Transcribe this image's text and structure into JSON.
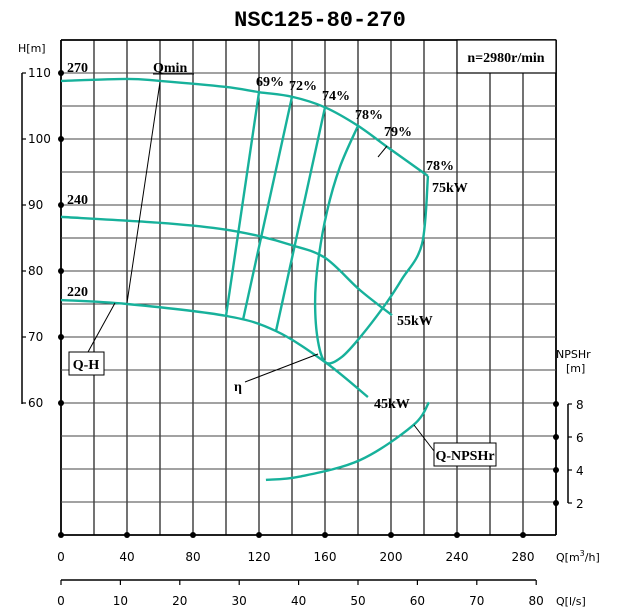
{
  "chart_data": {
    "type": "line",
    "title": "NSC125-80-270",
    "speed_label": "n=2980r/min",
    "xlabel": "Q[m³/h]",
    "xlabel2": "Q[l/s]",
    "ylabel": "H[m]",
    "ylabel_right": "NPSHr [m]",
    "xlim": [
      0,
      300
    ],
    "ylim": [
      48,
      115
    ],
    "grid": true,
    "x_ticks": [
      0,
      40,
      80,
      120,
      160,
      200,
      240,
      280
    ],
    "x2_ticks": [
      0,
      10,
      20,
      30,
      40,
      50,
      60,
      70,
      80
    ],
    "y_ticks": [
      60,
      70,
      80,
      90,
      100,
      110
    ],
    "npsh_ticks": [
      2,
      4,
      6,
      8
    ],
    "series": [
      {
        "name": "Q-H 270",
        "impeller": "270",
        "x": [
          0,
          40,
          60,
          99.4,
          120,
          140,
          160,
          180,
          198.8,
          222.4
        ],
        "y": [
          108.8,
          109.1,
          108.8,
          107.9,
          107.1,
          106.4,
          104.8,
          102,
          98.6,
          94.4
        ]
      },
      {
        "name": "Q-H 240",
        "impeller": "240",
        "x": [
          0,
          60,
          96.4,
          120,
          140,
          160,
          181.2,
          200.6
        ],
        "y": [
          88.2,
          87.3,
          86.4,
          85.3,
          83.9,
          82,
          77.1,
          73.3
        ]
      },
      {
        "name": "Q-H 220",
        "impeller": "220",
        "x": [
          0,
          40,
          100,
          130.3,
          160.6,
          186
        ],
        "y": [
          75.6,
          75,
          73.2,
          70.9,
          66.1,
          60.9
        ]
      },
      {
        "name": "Q-NPSHr",
        "x": [
          124.2,
          144.8,
          181.2,
          213.3,
          223
        ],
        "y": [
          3.4,
          3.6,
          4.6,
          6.7,
          8.1
        ],
        "axis": "right"
      }
    ],
    "efficiency_lines": [
      {
        "label": "69%",
        "x": [
          120,
          100
        ],
        "y": [
          107.1,
          73.2
        ]
      },
      {
        "label": "72%",
        "x": [
          140,
          110.3
        ],
        "y": [
          106.4,
          72.6
        ]
      },
      {
        "label": "74%",
        "x": [
          160,
          130.3
        ],
        "y": [
          104.8,
          70.9
        ]
      }
    ],
    "efficiency_loop": {
      "label": "78%",
      "x": [
        180,
        169.1,
        161.2,
        155.8,
        154,
        155.8,
        160.6,
        170.3,
        182.4,
        197.6,
        206.7,
        218.8,
        222.4
      ],
      "y": [
        102,
        95.8,
        89,
        81.4,
        75.3,
        69.3,
        66.1,
        67,
        70.3,
        75.3,
        78.8,
        84.1,
        94.4
      ]
    },
    "annotations": {
      "qmin": "Qmin",
      "qh": "Q-H",
      "eta": "η",
      "qnpshr": "Q-NPSHr",
      "eff_labels": [
        "69%",
        "72%",
        "74%",
        "78%",
        "79%",
        "78%"
      ],
      "power_labels": [
        "75kW",
        "55kW",
        "45kW"
      ],
      "impeller_labels": [
        "270",
        "240",
        "220"
      ]
    },
    "colors": {
      "curve": "#17b19b",
      "grid": "#000000"
    }
  },
  "labels": {
    "title": "NSC125-80-270",
    "speed": "n=2980r/min",
    "y_axis": "H[m]",
    "npsh_axis_1": "NPSHr",
    "npsh_axis_2": "[m]",
    "x_axis_m3h": "Q[m³/h]",
    "x_axis_ls": "Q[l/s]",
    "qmin": "Qmin",
    "qh": "Q-H",
    "eta": "η",
    "qnpshr": "Q-NPSHr",
    "imp270": "270",
    "imp240": "240",
    "imp220": "220",
    "e69": "69%",
    "e72": "72%",
    "e74": "74%",
    "e78a": "78%",
    "e79": "79%",
    "e78b": "78%",
    "p75": "75kW",
    "p55": "55kW",
    "p45": "45kW"
  }
}
